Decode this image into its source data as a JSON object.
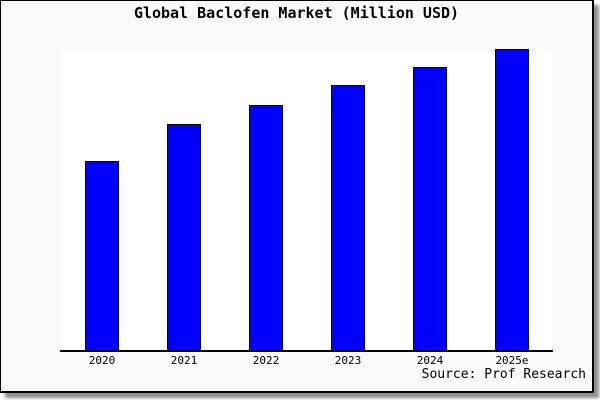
{
  "chart": {
    "title": "Global Baclofen Market (Million USD)",
    "source": "Source: Prof Research",
    "colors": {
      "bar_fill": "#0000ff",
      "bar_border": "#000000",
      "figure_bg": "#fafafa",
      "plot_bg": "#ffffff",
      "frame_border": "#000000",
      "axis": "#000000",
      "text": "#000000"
    }
  },
  "chart_data": {
    "type": "bar",
    "title": "Global Baclofen Market (Million USD)",
    "categories": [
      "2020",
      "2021",
      "2022",
      "2023",
      "2024",
      "2025e"
    ],
    "values": [
      62.8,
      75.2,
      81.4,
      88.0,
      94.0,
      100.0
    ],
    "value_basis": "relative bar heights; no y-axis tick labels shown, normalized so 2025e = 100",
    "xlabel": "",
    "ylabel": "",
    "ylim": [
      0,
      100.3
    ],
    "grid": false,
    "legend": false,
    "bar_color": "#0000ff",
    "source": "Source: Prof Research"
  }
}
